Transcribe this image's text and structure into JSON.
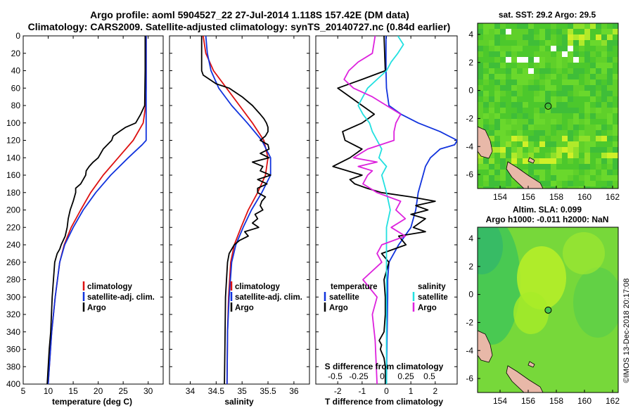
{
  "title_line1": "Argo profile: aoml 5904527_22 27-Jul-2014 1.118S 157.42E (DM data)",
  "title_line2": "Climatology: CARS2009. Satellite-adjusted climatology: synTS_20140727.nc (0.84d earlier)",
  "stamp": "©IMOS 13-Dec-2018 20:17:08",
  "colors": {
    "climatology": "#dd1111",
    "satellite": "#1133dd",
    "argo": "#000000",
    "salinity_sat": "#22e0e0",
    "salinity_diff": "#dd22dd"
  },
  "chart_data": [
    {
      "type": "line",
      "xlabel": "temperature (deg C)",
      "ylabel": "depth",
      "xlim": [
        5,
        33
      ],
      "ylim": [
        0,
        400
      ],
      "xticks": [
        "5",
        "10",
        "15",
        "20",
        "25",
        "30"
      ],
      "xtick_values": [
        5,
        10,
        15,
        20,
        25,
        30
      ],
      "yticks": [
        "0",
        "20",
        "40",
        "60",
        "80",
        "100",
        "120",
        "140",
        "160",
        "180",
        "200",
        "220",
        "240",
        "260",
        "280",
        "300",
        "320",
        "340",
        "360",
        "380",
        "400"
      ],
      "legend": [
        "climatology",
        "satellite-adj. clim.",
        "Argo"
      ],
      "series": [
        {
          "name": "climatology",
          "depth": [
            0,
            20,
            40,
            60,
            80,
            100,
            120,
            140,
            160,
            180,
            200,
            220,
            240,
            260,
            300,
            340,
            400
          ],
          "values": [
            29.6,
            29.6,
            29.6,
            29.6,
            29.5,
            29.0,
            27.0,
            24.0,
            21.0,
            18.5,
            16.5,
            14.6,
            13.2,
            12.3,
            11.4,
            10.7,
            10.0
          ]
        },
        {
          "name": "satellite-adj. clim.",
          "depth": [
            0,
            20,
            40,
            60,
            80,
            100,
            120,
            125,
            140,
            160,
            180,
            200,
            220,
            240,
            260,
            300,
            340,
            400
          ],
          "values": [
            29.6,
            29.6,
            29.6,
            29.6,
            29.6,
            29.6,
            29.6,
            28.8,
            26.0,
            22.5,
            19.5,
            17.0,
            15.0,
            13.3,
            12.3,
            11.4,
            10.7,
            10.0
          ]
        },
        {
          "name": "Argo",
          "depth": [
            0,
            40,
            80,
            90,
            100,
            105,
            110,
            115,
            120,
            130,
            140,
            145,
            150,
            155,
            160,
            165,
            170,
            175,
            180,
            190,
            200,
            210,
            220,
            230,
            240,
            245,
            250,
            260,
            300,
            340,
            360,
            400
          ],
          "values": [
            29.4,
            29.4,
            29.3,
            28.5,
            27.5,
            25.5,
            24.2,
            23.0,
            22.7,
            21.0,
            20.0,
            19.0,
            18.2,
            17.6,
            17.5,
            17.0,
            16.5,
            15.5,
            15.5,
            15.0,
            14.4,
            14.0,
            13.8,
            13.4,
            12.6,
            12.3,
            11.8,
            11.3,
            10.8,
            10.5,
            10.2,
            9.8
          ]
        }
      ]
    },
    {
      "type": "line",
      "xlabel": "salinity",
      "xlim": [
        33.6,
        36.3
      ],
      "ylim": [
        0,
        400
      ],
      "xticks": [
        "34",
        "34.5",
        "35",
        "35.5",
        "36"
      ],
      "xtick_values": [
        34,
        34.5,
        35,
        35.5,
        36
      ],
      "legend": [
        "climatology",
        "satellite-adj. clim.",
        "Argo"
      ],
      "series": [
        {
          "name": "climatology",
          "depth": [
            0,
            20,
            40,
            60,
            80,
            100,
            120,
            140,
            160,
            180,
            200,
            220,
            240,
            260,
            300,
            340,
            400
          ],
          "values": [
            34.25,
            34.3,
            34.45,
            34.7,
            34.95,
            35.2,
            35.42,
            35.5,
            35.45,
            35.3,
            35.12,
            34.98,
            34.85,
            34.78,
            34.74,
            34.72,
            34.71
          ]
        },
        {
          "name": "satellite-adj. clim.",
          "depth": [
            0,
            20,
            40,
            60,
            80,
            100,
            120,
            140,
            160,
            180,
            200,
            220,
            240,
            260,
            300,
            340,
            400
          ],
          "values": [
            34.3,
            34.33,
            34.4,
            34.55,
            34.8,
            35.1,
            35.38,
            35.55,
            35.55,
            35.38,
            35.18,
            35.02,
            34.88,
            34.8,
            34.75,
            34.72,
            34.71
          ]
        },
        {
          "name": "Argo",
          "depth": [
            0,
            40,
            45,
            55,
            60,
            70,
            80,
            90,
            95,
            100,
            105,
            110,
            115,
            120,
            125,
            130,
            135,
            140,
            145,
            150,
            155,
            160,
            165,
            170,
            175,
            180,
            185,
            190,
            195,
            200,
            205,
            210,
            215,
            220,
            225,
            230,
            235,
            240,
            250,
            260,
            300,
            350,
            400
          ],
          "values": [
            34.22,
            34.22,
            34.25,
            34.5,
            34.75,
            35.0,
            35.2,
            35.35,
            35.42,
            35.47,
            35.5,
            35.5,
            35.45,
            35.35,
            35.5,
            35.52,
            35.35,
            35.52,
            35.2,
            35.4,
            35.35,
            35.55,
            35.3,
            35.48,
            35.3,
            35.3,
            35.45,
            35.38,
            35.35,
            35.4,
            35.25,
            35.3,
            35.2,
            35.32,
            35.05,
            35.12,
            34.95,
            34.85,
            34.75,
            34.72,
            34.68,
            34.67,
            34.66
          ]
        }
      ]
    },
    {
      "type": "line",
      "xlabel": "T difference from climatology",
      "xlabel2": "S difference from climatology",
      "xlim": [
        -2.9,
        2.9
      ],
      "ylim": [
        0,
        400
      ],
      "xticks": [
        "-2",
        "-1",
        "0",
        "1",
        "2"
      ],
      "xtick_values": [
        -2,
        -1,
        0,
        1,
        2
      ],
      "xticks2": [
        "-0.5",
        "-0.25",
        "0",
        "0.25",
        "0.5"
      ],
      "xtick2_values": [
        -0.5,
        -0.25,
        0,
        0.25,
        0.5
      ],
      "legend_temperature_title": "temperature",
      "legend_salinity_title": "salinity",
      "legend_temperature": [
        "satellite",
        "Argo"
      ],
      "legend_salinity": [
        "satellite",
        "Argo"
      ],
      "series": [
        {
          "name": "temperature satellite",
          "depth": [
            0,
            40,
            60,
            80,
            90,
            100,
            110,
            120,
            125,
            130,
            140,
            150,
            160,
            180,
            200,
            220,
            240,
            250,
            260,
            280,
            300,
            350,
            400
          ],
          "values": [
            -0.02,
            -0.02,
            0,
            0.1,
            0.6,
            1.3,
            2.2,
            2.9,
            2.8,
            2.2,
            1.8,
            1.6,
            1.5,
            1.3,
            1.2,
            1.0,
            0.5,
            0.3,
            0.1,
            0.05,
            0.05,
            0.02,
            0
          ]
        },
        {
          "name": "temperature Argo",
          "depth": [
            0,
            40,
            50,
            60,
            70,
            80,
            90,
            100,
            110,
            120,
            130,
            140,
            150,
            160,
            165,
            170,
            175,
            180,
            185,
            190,
            195,
            200,
            205,
            210,
            220,
            225,
            230,
            240,
            250,
            260,
            280,
            300,
            320,
            340,
            350,
            355,
            360,
            370,
            380,
            400
          ],
          "values": [
            -0.1,
            -0.05,
            -1.0,
            -2.0,
            -1.5,
            -1.0,
            -0.5,
            -1.0,
            -1.8,
            -1.7,
            -1.0,
            -1.5,
            -2.2,
            -1.0,
            -1.5,
            -1.3,
            -0.8,
            -0.2,
            1.0,
            2.0,
            1.2,
            1.7,
            1.0,
            1.6,
            1.1,
            1.6,
            0.5,
            0.8,
            -0.2,
            0.1,
            -0.1,
            -0.05,
            -0.05,
            -0.1,
            -0.3,
            -0.2,
            -0.25,
            -0.1,
            -0.05,
            -0.05
          ]
        },
        {
          "name": "salinity satellite",
          "depth": [
            0,
            10,
            20,
            30,
            40,
            50,
            60,
            70,
            80,
            90,
            100,
            110,
            120,
            130,
            140,
            150,
            160,
            180,
            200,
            220,
            240,
            260,
            280,
            300,
            350,
            400
          ],
          "values": [
            0.12,
            0.18,
            0.12,
            0.05,
            0.0,
            -0.1,
            -0.2,
            -0.25,
            -0.3,
            -0.25,
            -0.18,
            -0.15,
            -0.1,
            -0.05,
            -0.08,
            0.0,
            -0.05,
            0.0,
            0.04,
            0.0,
            0.0,
            0.0,
            0.0,
            0.0,
            0.0,
            0.0
          ]
        },
        {
          "name": "salinity Argo",
          "depth": [
            0,
            20,
            30,
            40,
            50,
            60,
            70,
            80,
            90,
            100,
            110,
            120,
            130,
            140,
            145,
            150,
            155,
            160,
            170,
            180,
            190,
            200,
            210,
            220,
            230,
            240,
            250,
            260,
            280,
            300,
            320,
            350,
            400
          ],
          "values": [
            -0.12,
            -0.15,
            -0.3,
            -0.4,
            -0.45,
            -0.35,
            -0.15,
            0.0,
            0.15,
            0.1,
            0.08,
            0.08,
            -0.2,
            -0.35,
            -0.1,
            -0.3,
            -0.15,
            -0.2,
            -0.25,
            -0.1,
            0.15,
            0.1,
            0.2,
            0.05,
            0.2,
            -0.05,
            -0.1,
            -0.05,
            -0.25,
            -0.1,
            -0.15,
            -0.12,
            -0.1
          ]
        }
      ]
    }
  ],
  "map1": {
    "title": "sat. SST: 29.2 Argo: 29.5",
    "xticks": [
      "154",
      "156",
      "158",
      "160",
      "162"
    ],
    "xtick_values": [
      154,
      156,
      158,
      160,
      162
    ],
    "yticks": [
      "4",
      "2",
      "0",
      "-2",
      "-4",
      "-6"
    ],
    "ytick_values": [
      4,
      2,
      0,
      -2,
      -4,
      -6
    ],
    "lon_range": [
      152.4,
      162.4
    ],
    "lat_range": [
      -7,
      4.8
    ],
    "argo_lon": 157.42,
    "argo_lat": -1.118
  },
  "map2": {
    "title": "Altim. SLA: 0.099",
    "subtitle": "Argo h1000: -0.011 h2000: NaN",
    "xticks": [
      "154",
      "156",
      "158",
      "160",
      "162"
    ],
    "xtick_values": [
      154,
      156,
      158,
      160,
      162
    ],
    "yticks": [
      "4",
      "2",
      "0",
      "-2",
      "-4",
      "-6"
    ],
    "ytick_values": [
      4,
      2,
      0,
      -2,
      -4,
      -6
    ],
    "lon_range": [
      152.4,
      162.4
    ],
    "lat_range": [
      -7,
      4.8
    ],
    "argo_lon": 157.42,
    "argo_lat": -1.118
  }
}
